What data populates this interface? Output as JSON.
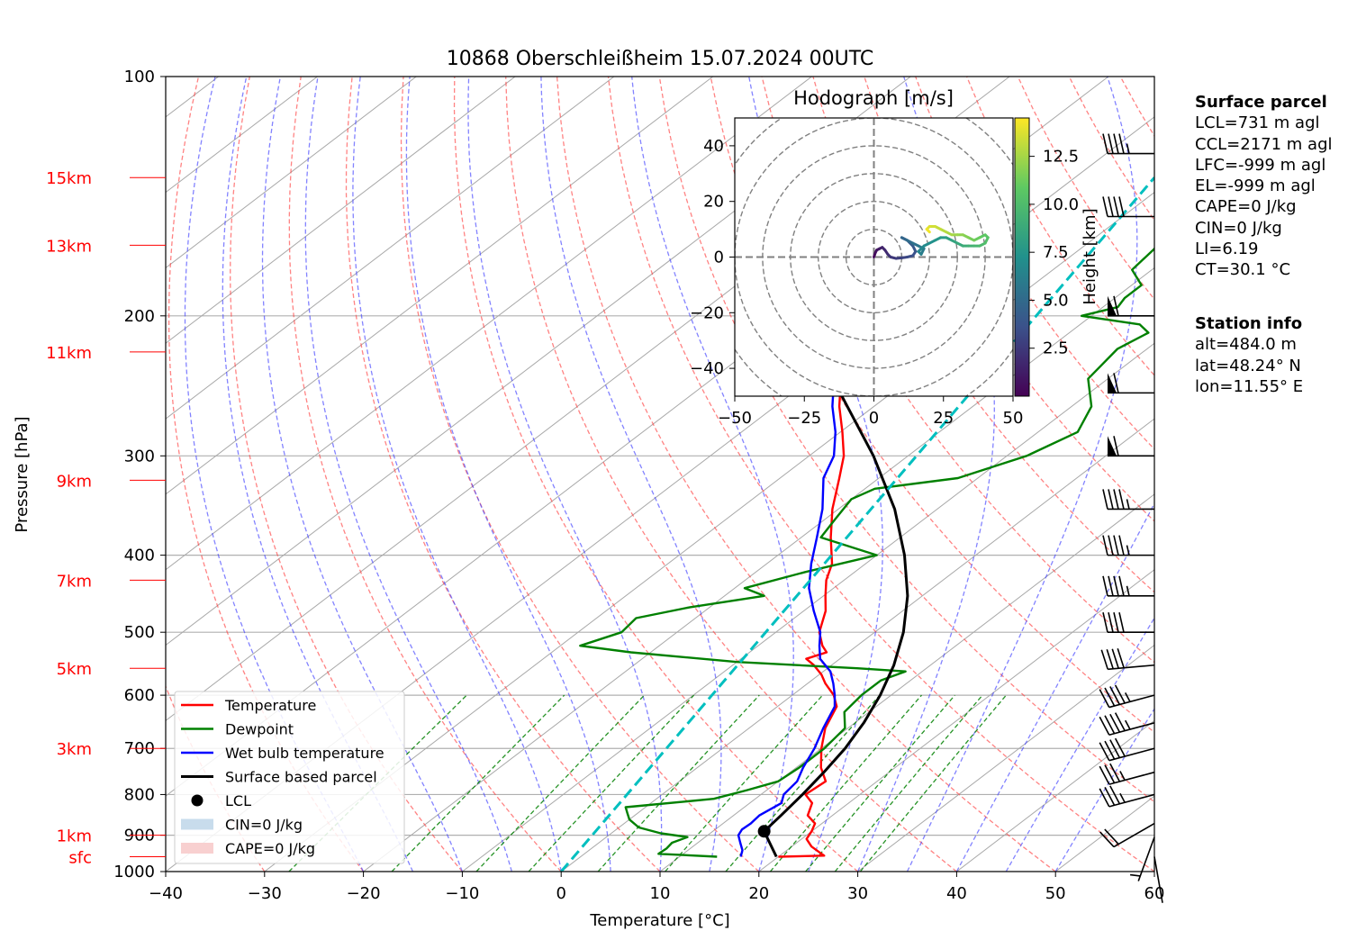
{
  "chart_data": {
    "type": "line",
    "title": "10868 Oberschleißheim 15.07.2024 00UTC",
    "xlabel": "Temperature [°C]",
    "ylabel": "Pressure [hPa]",
    "xlim": [
      -40,
      60
    ],
    "ylim": [
      1000,
      100
    ],
    "y_scale": "log",
    "skew": "skew-T",
    "x_ticks": [
      "−40",
      "−30",
      "−20",
      "−10",
      "0",
      "10",
      "20",
      "30",
      "40",
      "50",
      "60"
    ],
    "y_ticks": [
      {
        "p": 100,
        "label": "100"
      },
      {
        "p": 200,
        "label": "200"
      },
      {
        "p": 300,
        "label": "300"
      },
      {
        "p": 400,
        "label": "400"
      },
      {
        "p": 500,
        "label": "500"
      },
      {
        "p": 600,
        "label": "600"
      },
      {
        "p": 700,
        "label": "700"
      },
      {
        "p": 800,
        "label": "800"
      },
      {
        "p": 900,
        "label": "900"
      },
      {
        "p": 1000,
        "label": "1000"
      }
    ],
    "height_labels": [
      {
        "p": 134,
        "label": "15km"
      },
      {
        "p": 163,
        "label": "13km"
      },
      {
        "p": 222,
        "label": "11km"
      },
      {
        "p": 322,
        "label": "9km"
      },
      {
        "p": 430,
        "label": "7km"
      },
      {
        "p": 555,
        "label": "5km"
      },
      {
        "p": 700,
        "label": "3km"
      },
      {
        "p": 900,
        "label": "1km"
      },
      {
        "p": 958,
        "label": "sfc"
      }
    ],
    "series": [
      {
        "name": "Temperature",
        "color": "#ff0000",
        "points": [
          [
            958,
            20
          ],
          [
            955,
            24.5
          ],
          [
            945,
            23.5
          ],
          [
            930,
            22
          ],
          [
            910,
            20.5
          ],
          [
            890,
            20
          ],
          [
            870,
            19.3
          ],
          [
            850,
            17.5
          ],
          [
            820,
            16.3
          ],
          [
            800,
            14.5
          ],
          [
            770,
            14.8
          ],
          [
            740,
            12.5
          ],
          [
            700,
            10
          ],
          [
            660,
            7.7
          ],
          [
            620,
            6
          ],
          [
            600,
            4.2
          ],
          [
            580,
            1.8
          ],
          [
            565,
            0.2
          ],
          [
            550,
            -1.8
          ],
          [
            540,
            -3.4
          ],
          [
            530,
            -2.2
          ],
          [
            520,
            -3.5
          ],
          [
            500,
            -5.6
          ],
          [
            470,
            -7.8
          ],
          [
            450,
            -9.8
          ],
          [
            430,
            -11.8
          ],
          [
            410,
            -13.4
          ],
          [
            380,
            -17
          ],
          [
            350,
            -20.6
          ],
          [
            320,
            -24
          ],
          [
            300,
            -26.5
          ],
          [
            280,
            -29.8
          ],
          [
            260,
            -33.5
          ],
          [
            240,
            -37
          ],
          [
            220,
            -40.5
          ],
          [
            200,
            -45.3
          ],
          [
            190,
            -47
          ],
          [
            180,
            -48
          ],
          [
            170,
            -49.3
          ],
          [
            160,
            -52.5
          ],
          [
            150,
            -56.5
          ],
          [
            145,
            -57.5
          ],
          [
            140,
            -58
          ],
          [
            135,
            -58.5
          ],
          [
            132,
            -59
          ]
        ]
      },
      {
        "name": "Dewpoint",
        "color": "#008000",
        "points": [
          [
            958,
            13.8
          ],
          [
            950,
            7.5
          ],
          [
            935,
            7.6
          ],
          [
            920,
            7.4
          ],
          [
            905,
            8.2
          ],
          [
            895,
            5
          ],
          [
            880,
            2
          ],
          [
            860,
            0
          ],
          [
            845,
            -1
          ],
          [
            830,
            -2
          ],
          [
            810,
            5.8
          ],
          [
            790,
            8
          ],
          [
            770,
            10
          ],
          [
            740,
            10.3
          ],
          [
            700,
            10.3
          ],
          [
            660,
            9.7
          ],
          [
            630,
            7.5
          ],
          [
            600,
            7
          ],
          [
            575,
            7
          ],
          [
            560,
            8.3
          ],
          [
            555,
            3
          ],
          [
            545,
            -10
          ],
          [
            530,
            -22
          ],
          [
            520,
            -28
          ],
          [
            500,
            -25.6
          ],
          [
            480,
            -26
          ],
          [
            465,
            -22
          ],
          [
            450,
            -16
          ],
          [
            440,
            -19
          ],
          [
            420,
            -15
          ],
          [
            400,
            -10
          ],
          [
            380,
            -18
          ],
          [
            360,
            -19
          ],
          [
            340,
            -20
          ],
          [
            330,
            -19
          ],
          [
            320,
            -12
          ],
          [
            300,
            -8
          ],
          [
            280,
            -6
          ],
          [
            260,
            -8
          ],
          [
            240,
            -12
          ],
          [
            220,
            -13
          ],
          [
            210,
            -12
          ],
          [
            205,
            -14
          ],
          [
            200,
            -21
          ],
          [
            195,
            -18.5
          ],
          [
            190,
            -19
          ],
          [
            183,
            -19
          ],
          [
            175,
            -22
          ],
          [
            165,
            -22.5
          ],
          [
            160,
            -23
          ],
          [
            155,
            -24.5
          ],
          [
            148,
            -24
          ],
          [
            140,
            -22
          ],
          [
            136,
            -22.7
          ],
          [
            134,
            -22.5
          ]
        ]
      },
      {
        "name": "Wet bulb temperature",
        "color": "#0000ff",
        "points": [
          [
            958,
            16.2
          ],
          [
            940,
            15.5
          ],
          [
            920,
            14.3
          ],
          [
            900,
            13.1
          ],
          [
            885,
            12.7
          ],
          [
            870,
            12.8
          ],
          [
            850,
            12.6
          ],
          [
            820,
            13.2
          ],
          [
            800,
            12.3
          ],
          [
            770,
            11.9
          ],
          [
            740,
            10.7
          ],
          [
            700,
            9.3
          ],
          [
            660,
            7.5
          ],
          [
            620,
            5.8
          ],
          [
            600,
            4.3
          ],
          [
            580,
            2.6
          ],
          [
            560,
            0.7
          ],
          [
            540,
            -2
          ],
          [
            520,
            -3.8
          ],
          [
            500,
            -5.5
          ],
          [
            470,
            -9
          ],
          [
            440,
            -12.5
          ],
          [
            410,
            -15.5
          ],
          [
            380,
            -18.4
          ],
          [
            350,
            -21.6
          ],
          [
            320,
            -25.6
          ],
          [
            300,
            -27.5
          ],
          [
            280,
            -30.5
          ],
          [
            260,
            -34.2
          ],
          [
            240,
            -37.7
          ],
          [
            220,
            -41
          ],
          [
            200,
            -45.8
          ],
          [
            190,
            -47.3
          ],
          [
            180,
            -48
          ],
          [
            170,
            -49.5
          ],
          [
            160,
            -53
          ],
          [
            150,
            -57.3
          ],
          [
            145,
            -58
          ],
          [
            140,
            -58.3
          ],
          [
            135,
            -58.8
          ],
          [
            132,
            -59.3
          ]
        ]
      },
      {
        "name": "Surface based parcel",
        "color": "#000000",
        "points": [
          [
            958,
            19.8
          ],
          [
            890,
            15.2
          ],
          [
            850,
            14.8
          ],
          [
            800,
            14.2
          ],
          [
            750,
            13.4
          ],
          [
            700,
            12.4
          ],
          [
            650,
            10.9
          ],
          [
            600,
            8.9
          ],
          [
            550,
            6.3
          ],
          [
            500,
            2.9
          ],
          [
            450,
            -1.5
          ],
          [
            400,
            -7.2
          ],
          [
            350,
            -14.3
          ],
          [
            300,
            -23.5
          ],
          [
            250,
            -35.2
          ],
          [
            200,
            -50.2
          ],
          [
            150,
            -67.7
          ],
          [
            134,
            -74
          ]
        ]
      }
    ],
    "lcl": {
      "label": "LCL",
      "p": 890,
      "t": 15.2
    },
    "cin_label": "CIN=0 J/kg",
    "cape_label": "CAPE=0 J/kg",
    "wind_barbs": [
      {
        "p": 958,
        "speed_kt": 2,
        "dir": 170
      },
      {
        "p": 905,
        "speed_kt": 8,
        "dir": 200
      },
      {
        "p": 870,
        "speed_kt": 20,
        "dir": 240
      },
      {
        "p": 800,
        "speed_kt": 35,
        "dir": 255
      },
      {
        "p": 750,
        "speed_kt": 35,
        "dir": 255
      },
      {
        "p": 700,
        "speed_kt": 40,
        "dir": 255
      },
      {
        "p": 650,
        "speed_kt": 45,
        "dir": 255
      },
      {
        "p": 600,
        "speed_kt": 45,
        "dir": 255
      },
      {
        "p": 550,
        "speed_kt": 40,
        "dir": 265
      },
      {
        "p": 500,
        "speed_kt": 40,
        "dir": 270
      },
      {
        "p": 450,
        "speed_kt": 45,
        "dir": 270
      },
      {
        "p": 400,
        "speed_kt": 45,
        "dir": 270
      },
      {
        "p": 350,
        "speed_kt": 45,
        "dir": 270
      },
      {
        "p": 300,
        "speed_kt": 60,
        "dir": 270
      },
      {
        "p": 250,
        "speed_kt": 60,
        "dir": 270
      },
      {
        "p": 200,
        "speed_kt": 60,
        "dir": 270
      },
      {
        "p": 150,
        "speed_kt": 40,
        "dir": 270
      },
      {
        "p": 125,
        "speed_kt": 45,
        "dir": 270
      }
    ],
    "hodograph": {
      "title": "Hodograph [m/s]",
      "xlim": [
        -50,
        50
      ],
      "ylim": [
        -50,
        50
      ],
      "x_ticks": [
        "−50",
        "−25",
        "0",
        "25",
        "50"
      ],
      "y_ticks": [
        "−40",
        "−20",
        "0",
        "20",
        "40"
      ],
      "rings": [
        10,
        20,
        30,
        40,
        50,
        60
      ],
      "colorbar_label": "Height [km]",
      "colorbar_ticks": [
        "2.5",
        "5.0",
        "7.5",
        "10.0",
        "12.5"
      ],
      "colorbar_range": [
        0,
        14.5
      ],
      "path": [
        [
          0,
          0,
          0
        ],
        [
          0.5,
          1.5,
          0.3
        ],
        [
          1,
          2.5,
          0.6
        ],
        [
          2,
          3,
          0.9
        ],
        [
          3,
          3.5,
          1.2
        ],
        [
          4,
          2.5,
          1.5
        ],
        [
          5,
          1,
          1.8
        ],
        [
          6,
          0,
          2.1
        ],
        [
          8,
          -0.5,
          2.4
        ],
        [
          10,
          -0.3,
          2.7
        ],
        [
          12,
          0,
          3
        ],
        [
          14,
          0.5,
          3.3
        ],
        [
          15,
          2,
          3.6
        ],
        [
          14,
          4,
          3.9
        ],
        [
          12,
          6,
          4.2
        ],
        [
          10,
          7,
          4.5
        ],
        [
          12,
          6,
          4.8
        ],
        [
          14,
          5,
          5.1
        ],
        [
          16,
          4,
          5.4
        ],
        [
          18,
          3,
          5.7
        ],
        [
          17,
          1,
          6
        ],
        [
          16,
          2,
          6.3
        ],
        [
          18,
          4,
          6.6
        ],
        [
          20,
          5,
          6.9
        ],
        [
          22,
          6,
          7.2
        ],
        [
          24,
          7,
          7.5
        ],
        [
          26,
          7,
          7.8
        ],
        [
          28,
          6,
          8.1
        ],
        [
          30,
          5,
          8.4
        ],
        [
          32,
          4,
          8.7
        ],
        [
          34,
          4,
          9
        ],
        [
          36,
          4,
          9.3
        ],
        [
          38,
          4,
          9.6
        ],
        [
          40,
          5,
          9.9
        ],
        [
          41,
          7,
          10.2
        ],
        [
          40,
          8,
          10.5
        ],
        [
          38,
          7,
          10.8
        ],
        [
          36,
          6,
          11.1
        ],
        [
          34,
          7,
          11.4
        ],
        [
          32,
          8,
          11.7
        ],
        [
          30,
          8,
          12
        ],
        [
          28,
          8,
          12.3
        ],
        [
          26,
          9,
          12.6
        ],
        [
          24,
          10,
          12.9
        ],
        [
          22,
          11,
          13.2
        ],
        [
          20,
          11,
          13.5
        ],
        [
          19,
          10,
          13.8
        ],
        [
          20,
          9,
          14.2
        ]
      ]
    }
  },
  "legend": [
    {
      "label": "Temperature",
      "kind": "line",
      "color": "#ff0000"
    },
    {
      "label": "Dewpoint",
      "kind": "line",
      "color": "#008000"
    },
    {
      "label": "Wet bulb temperature",
      "kind": "line",
      "color": "#0000ff"
    },
    {
      "label": "Surface based parcel",
      "kind": "line",
      "color": "#000000"
    },
    {
      "label": "LCL",
      "kind": "dot",
      "color": "#000000"
    },
    {
      "label": "CIN=0 J/kg",
      "kind": "patch",
      "color": "#c8dcec"
    },
    {
      "label": "CAPE=0 J/kg",
      "kind": "patch",
      "color": "#f8d0d0"
    }
  ],
  "colors": {
    "height_label": "#ff0000",
    "hodo_line": "#00bfbf",
    "dry_adiabat": "#ff4040",
    "moist_adiabat": "#4040ff",
    "mixing_ratio": "#008000"
  },
  "surface_parcel": {
    "title": "Surface parcel",
    "lines": [
      "LCL=731 m agl",
      "CCL=2171 m agl",
      "LFC=-999 m agl",
      "EL=-999 m agl",
      "CAPE=0 J/kg",
      "CIN=0 J/kg",
      "LI=6.19",
      "CT=30.1 °C"
    ]
  },
  "station_info": {
    "title": "Station info",
    "lines": [
      "alt=484.0 m",
      "lat=48.24° N",
      "lon=11.55° E"
    ]
  }
}
